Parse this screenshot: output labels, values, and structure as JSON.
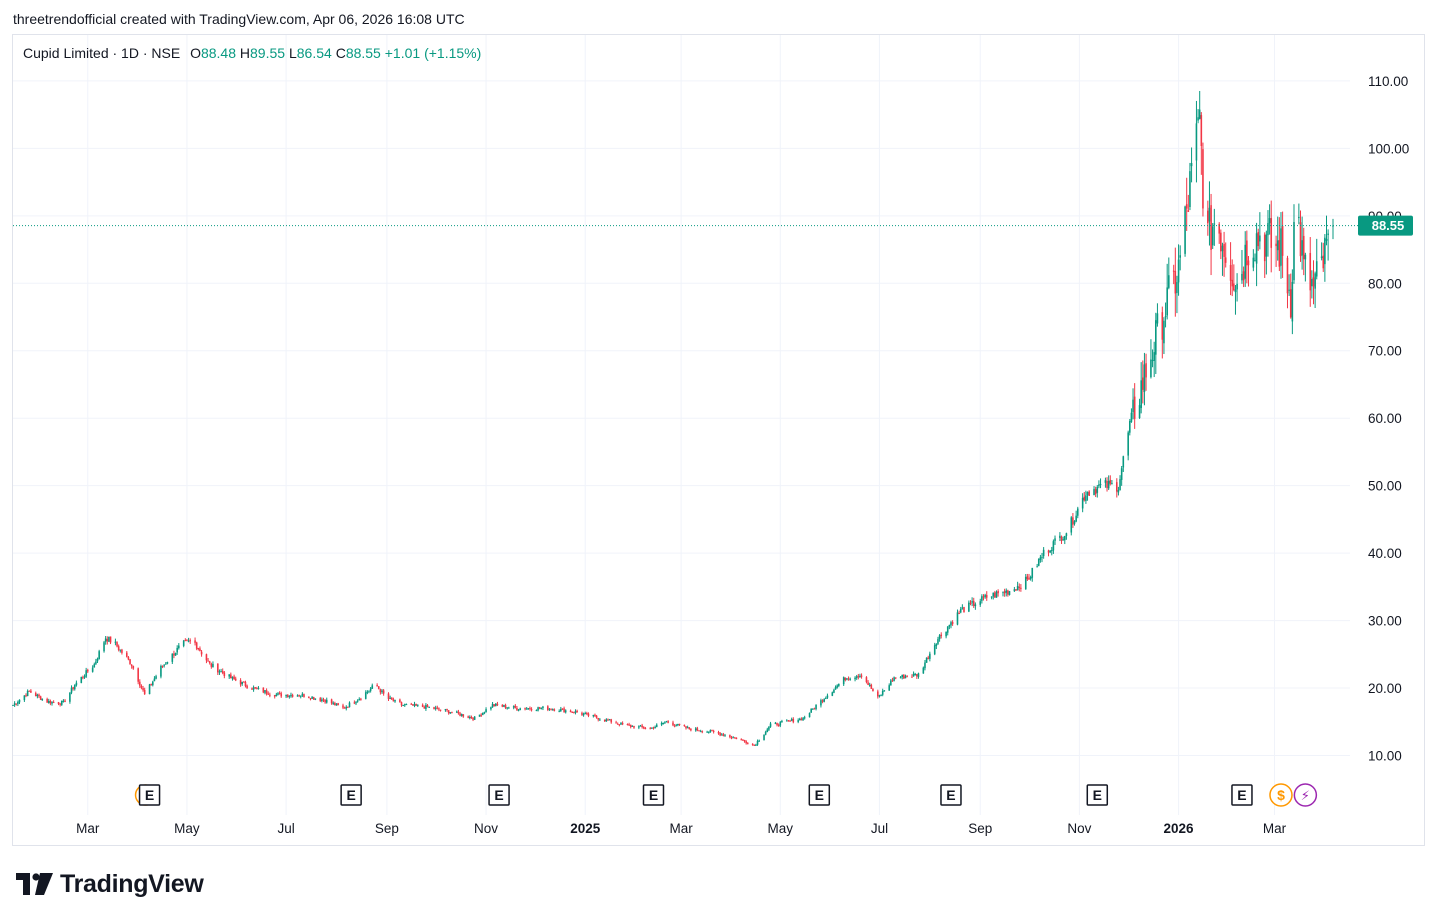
{
  "header": {
    "caption": "threetrendofficial created with TradingView.com, Apr 06, 2026 16:08 UTC"
  },
  "legend": {
    "symbol": "Cupid Limited · 1D · NSE",
    "o_label": "O",
    "o_value": "88.48",
    "h_label": "H",
    "h_value": "89.55",
    "l_label": "L",
    "l_value": "86.54",
    "c_label": "C",
    "c_value": "88.55",
    "change": "+1.01 (+1.15%)"
  },
  "last_price_label": "88.55",
  "brand": {
    "name": "TradingView"
  },
  "colors": {
    "up": "#089981",
    "down": "#f23645",
    "grid": "#f0f3fa",
    "event_earnings": "#131722",
    "event_dividend": "#ff9800",
    "event_split": "#9c27b0"
  },
  "events": [
    {
      "type": "earnings",
      "label": "E",
      "date": "2024-04-08",
      "overlap": "dividend"
    },
    {
      "type": "earnings",
      "label": "E",
      "date": "2024-08-10"
    },
    {
      "type": "earnings",
      "label": "E",
      "date": "2024-11-09"
    },
    {
      "type": "earnings",
      "label": "E",
      "date": "2025-02-12"
    },
    {
      "type": "earnings",
      "label": "E",
      "date": "2025-05-25"
    },
    {
      "type": "earnings",
      "label": "E",
      "date": "2025-08-14"
    },
    {
      "type": "earnings",
      "label": "E",
      "date": "2025-11-12"
    },
    {
      "type": "earnings",
      "label": "E",
      "date": "2026-02-09"
    },
    {
      "type": "dividend",
      "label": "$",
      "date": "2026-03-05"
    },
    {
      "type": "split",
      "label": "⚡",
      "date": "2026-03-20"
    }
  ],
  "chart_data": {
    "type": "candlestick",
    "title": "Cupid Limited · 1D · NSE",
    "x_start": "2024-01-15",
    "x_end": "2026-04-06",
    "ylim": [
      5,
      115
    ],
    "y_ticks": [
      "10.00",
      "20.00",
      "30.00",
      "40.00",
      "50.00",
      "60.00",
      "70.00",
      "80.00",
      "90.00",
      "100.00",
      "110.00"
    ],
    "x_ticks": [
      {
        "date": "2024-03-01",
        "label": "Mar"
      },
      {
        "date": "2024-05-01",
        "label": "May"
      },
      {
        "date": "2024-07-01",
        "label": "Jul"
      },
      {
        "date": "2024-09-01",
        "label": "Sep"
      },
      {
        "date": "2024-11-01",
        "label": "Nov"
      },
      {
        "date": "2025-01-01",
        "label": "2025",
        "bold": true
      },
      {
        "date": "2025-03-01",
        "label": "Mar"
      },
      {
        "date": "2025-05-01",
        "label": "May"
      },
      {
        "date": "2025-07-01",
        "label": "Jul"
      },
      {
        "date": "2025-09-01",
        "label": "Sep"
      },
      {
        "date": "2025-11-01",
        "label": "Nov"
      },
      {
        "date": "2026-01-01",
        "label": "2026",
        "bold": true
      },
      {
        "date": "2026-03-01",
        "label": "Mar"
      }
    ],
    "last_price": 88.55,
    "grid": true,
    "close_path": [
      [
        "2024-01-15",
        17.5
      ],
      [
        "2024-01-25",
        19.5
      ],
      [
        "2024-02-05",
        18.0
      ],
      [
        "2024-02-15",
        17.8
      ],
      [
        "2024-02-22",
        20.5
      ],
      [
        "2024-03-05",
        23.5
      ],
      [
        "2024-03-12",
        27.5
      ],
      [
        "2024-03-18",
        26.5
      ],
      [
        "2024-03-28",
        23.5
      ],
      [
        "2024-04-05",
        19.0
      ],
      [
        "2024-04-15",
        23.0
      ],
      [
        "2024-04-28",
        26.5
      ],
      [
        "2024-05-05",
        27.0
      ],
      [
        "2024-05-15",
        23.5
      ],
      [
        "2024-05-28",
        21.5
      ],
      [
        "2024-06-10",
        20.0
      ],
      [
        "2024-06-25",
        19.0
      ],
      [
        "2024-07-10",
        19.0
      ],
      [
        "2024-07-25",
        18.2
      ],
      [
        "2024-08-05",
        17.0
      ],
      [
        "2024-08-15",
        18.5
      ],
      [
        "2024-08-25",
        20.5
      ],
      [
        "2024-09-01",
        18.5
      ],
      [
        "2024-09-10",
        17.5
      ],
      [
        "2024-09-25",
        17.2
      ],
      [
        "2024-10-10",
        16.5
      ],
      [
        "2024-10-25",
        15.5
      ],
      [
        "2024-11-05",
        17.5
      ],
      [
        "2024-11-20",
        17.0
      ],
      [
        "2024-12-10",
        17.0
      ],
      [
        "2024-12-25",
        16.5
      ],
      [
        "2025-01-10",
        15.5
      ],
      [
        "2025-01-25",
        14.5
      ],
      [
        "2025-02-10",
        14.0
      ],
      [
        "2025-02-20",
        15.0
      ],
      [
        "2025-03-05",
        14.0
      ],
      [
        "2025-03-20",
        13.5
      ],
      [
        "2025-04-05",
        12.5
      ],
      [
        "2025-04-15",
        11.5
      ],
      [
        "2025-04-25",
        14.5
      ],
      [
        "2025-05-15",
        15.5
      ],
      [
        "2025-05-30",
        19.0
      ],
      [
        "2025-06-10",
        21.5
      ],
      [
        "2025-06-20",
        22.0
      ],
      [
        "2025-06-30",
        18.5
      ],
      [
        "2025-07-10",
        21.5
      ],
      [
        "2025-07-25",
        22.0
      ],
      [
        "2025-08-05",
        27.0
      ],
      [
        "2025-08-20",
        31.5
      ],
      [
        "2025-09-05",
        33.5
      ],
      [
        "2025-09-20",
        34.5
      ],
      [
        "2025-09-30",
        36.0
      ],
      [
        "2025-10-10",
        40.0
      ],
      [
        "2025-10-25",
        43.5
      ],
      [
        "2025-11-05",
        49.0
      ],
      [
        "2025-11-15",
        50.0
      ],
      [
        "2025-11-25",
        50.0
      ],
      [
        "2025-12-02",
        59.0
      ],
      [
        "2025-12-12",
        67.0
      ],
      [
        "2025-12-22",
        75.0
      ],
      [
        "2026-01-01",
        82.0
      ],
      [
        "2026-01-08",
        94.0
      ],
      [
        "2026-01-14",
        104.0
      ],
      [
        "2026-01-18",
        86.0
      ],
      [
        "2026-01-24",
        90.0
      ],
      [
        "2026-01-30",
        85.0
      ],
      [
        "2026-02-06",
        80.0
      ],
      [
        "2026-02-13",
        86.0
      ],
      [
        "2026-02-20",
        87.0
      ],
      [
        "2026-02-27",
        86.0
      ],
      [
        "2026-03-05",
        85.0
      ],
      [
        "2026-03-11",
        78.0
      ],
      [
        "2026-03-14",
        93.0
      ],
      [
        "2026-03-19",
        82.0
      ],
      [
        "2026-03-25",
        79.0
      ],
      [
        "2026-03-31",
        83.0
      ],
      [
        "2026-04-06",
        88.55
      ]
    ]
  }
}
